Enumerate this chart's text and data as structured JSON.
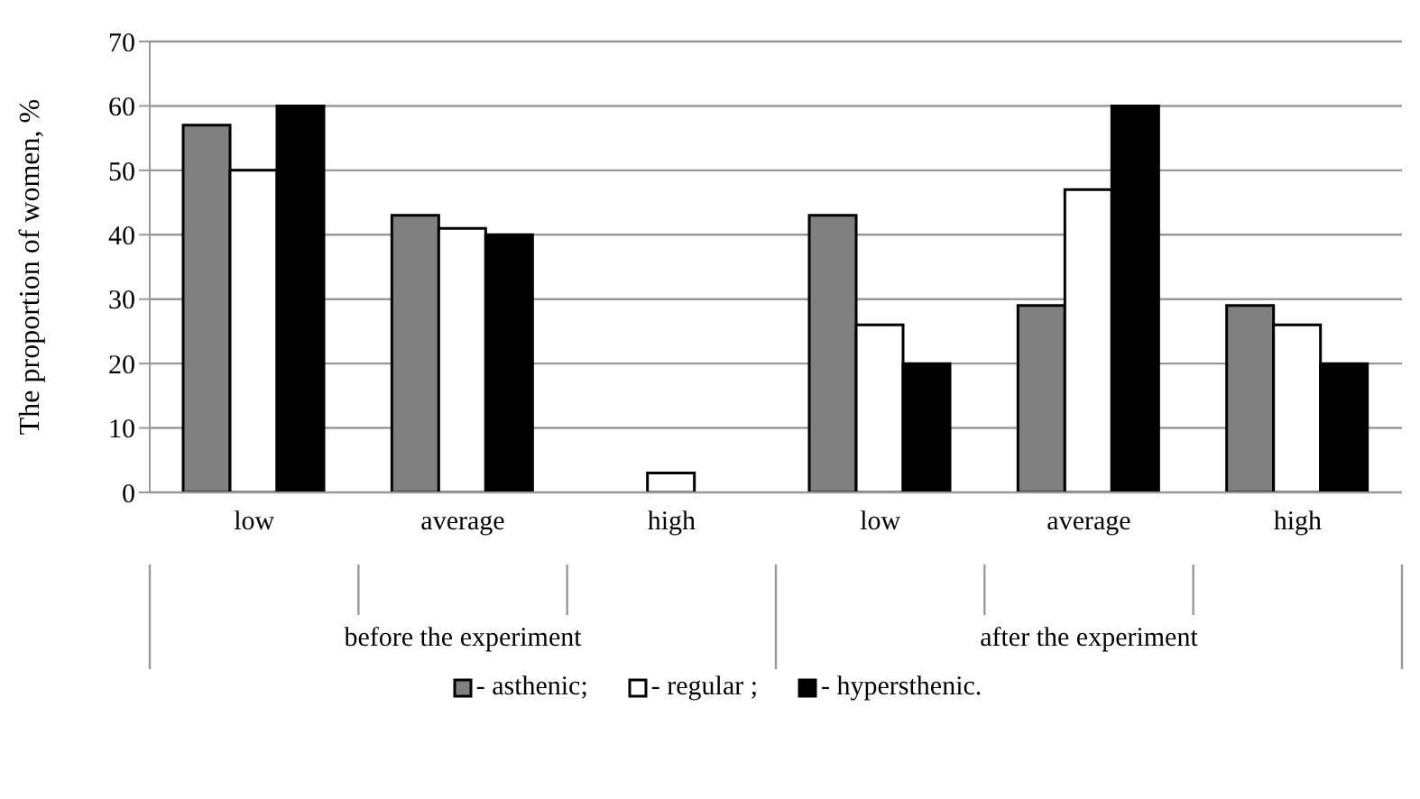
{
  "chart_data": {
    "type": "bar",
    "ylabel": "The proportion of women, %",
    "categories": [
      "low",
      "average",
      "high",
      "low",
      "average",
      "high"
    ],
    "series": [
      {
        "name": "- asthenic;",
        "color": "#808080",
        "values": [
          57,
          43,
          0,
          43,
          29,
          29
        ]
      },
      {
        "name": "- regular ;",
        "color": "#ffffff",
        "values": [
          50,
          41,
          3,
          26,
          47,
          26
        ]
      },
      {
        "name": "- hypersthenic.",
        "color": "#000000",
        "values": [
          60,
          40,
          0,
          20,
          60,
          20
        ]
      }
    ],
    "annotations": [
      "before the experiment",
      "after the experiment"
    ],
    "ylim": [
      0,
      70
    ],
    "yticks": [
      0,
      10,
      20,
      30,
      40,
      50,
      60,
      70
    ],
    "grid": "y",
    "legend": "bottom"
  }
}
